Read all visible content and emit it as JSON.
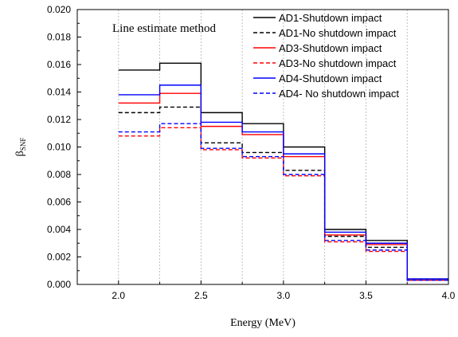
{
  "chart_data": {
    "type": "line",
    "step": true,
    "annotation": "Line estimate method",
    "xlabel": "Energy (MeV)",
    "ylabel_main": "β",
    "ylabel_sub": "SNF",
    "xlim": [
      1.75,
      4.0
    ],
    "ylim": [
      0.0,
      0.02
    ],
    "x_ticks": [
      "2.0",
      "2.5",
      "3.0",
      "3.5",
      "4.0"
    ],
    "y_ticks": [
      "0.000",
      "0.002",
      "0.004",
      "0.006",
      "0.008",
      "0.010",
      "0.012",
      "0.014",
      "0.016",
      "0.018",
      "0.020"
    ],
    "x_tick_values": [
      2.0,
      2.5,
      3.0,
      3.5,
      4.0
    ],
    "y_tick_values": [
      0.0,
      0.002,
      0.004,
      0.006,
      0.008,
      0.01,
      0.012,
      0.014,
      0.016,
      0.018,
      0.02
    ],
    "grid": "vertical dashed at bin edges",
    "bin_edges": [
      2.0,
      2.25,
      2.5,
      2.75,
      3.0,
      3.25,
      3.5,
      3.75,
      4.0
    ],
    "legend_position": "top-right",
    "series": [
      {
        "name": "AD1-Shutdown impact",
        "color": "#000000",
        "dash": "solid",
        "values": [
          0.0156,
          0.0161,
          0.0125,
          0.0117,
          0.01,
          0.004,
          0.0032,
          0.0004
        ]
      },
      {
        "name": "AD1-No shutdown impact",
        "color": "#000000",
        "dash": "dashed",
        "values": [
          0.0125,
          0.0129,
          0.0103,
          0.0096,
          0.0083,
          0.0035,
          0.0027,
          0.0003
        ]
      },
      {
        "name": "AD3-Shutdown impact",
        "color": "#ff0000",
        "dash": "solid",
        "values": [
          0.0132,
          0.0139,
          0.0115,
          0.0109,
          0.0093,
          0.0036,
          0.0029,
          0.0003
        ]
      },
      {
        "name": "AD3-No shutdown impact",
        "color": "#ff0000",
        "dash": "dashed",
        "values": [
          0.0108,
          0.0114,
          0.0098,
          0.0092,
          0.0079,
          0.0031,
          0.0024,
          0.0003
        ]
      },
      {
        "name": "AD4-Shutdown impact",
        "color": "#0000ff",
        "dash": "solid",
        "values": [
          0.0138,
          0.0145,
          0.0118,
          0.0111,
          0.0095,
          0.0038,
          0.003,
          0.0004
        ]
      },
      {
        "name": "AD4- No shutdown impact",
        "color": "#0000ff",
        "dash": "dashed",
        "values": [
          0.0111,
          0.0117,
          0.0099,
          0.0093,
          0.008,
          0.0032,
          0.0025,
          0.0003
        ]
      }
    ]
  }
}
